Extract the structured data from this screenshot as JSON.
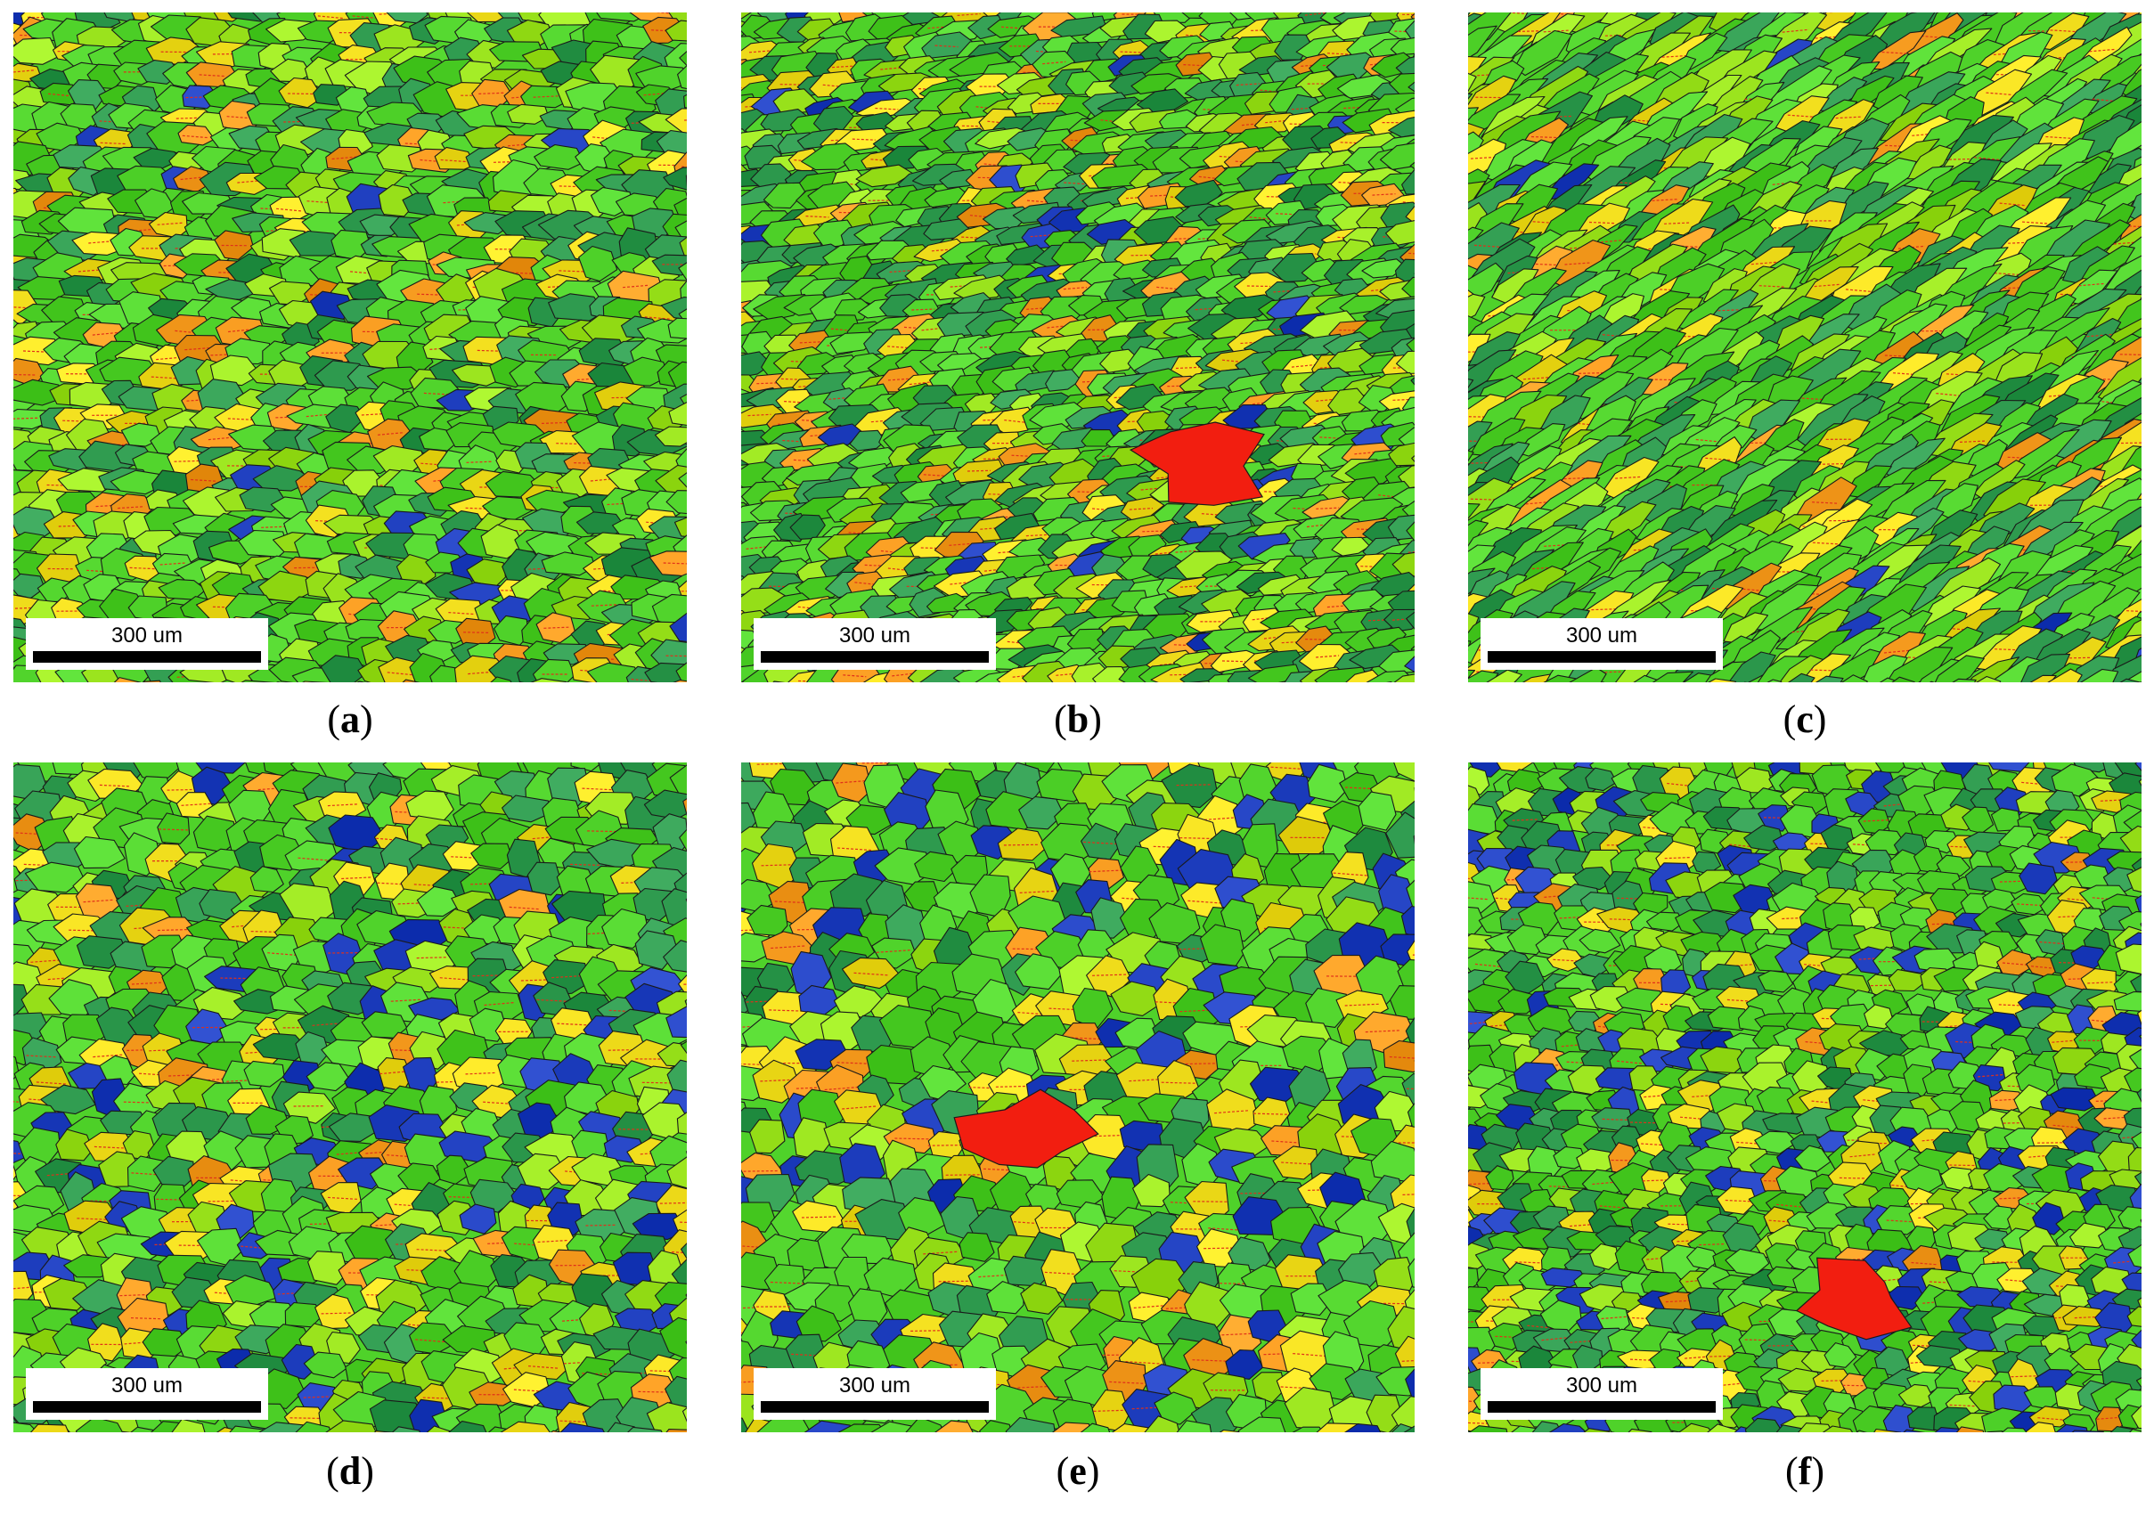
{
  "panels": [
    {
      "label": "a",
      "scale_text": "300 um",
      "seed": 11,
      "elong": 1.35,
      "angle": 0,
      "grain": 30,
      "weights": [
        0.42,
        0.22,
        0.18,
        0.1,
        0.06,
        0.02
      ],
      "red_blob": false
    },
    {
      "label": "b",
      "scale_text": "300 um",
      "seed": 23,
      "elong": 1.5,
      "angle": -12,
      "grain": 26,
      "weights": [
        0.4,
        0.25,
        0.16,
        0.1,
        0.06,
        0.03
      ],
      "red_blob": true
    },
    {
      "label": "c",
      "scale_text": "300 um",
      "seed": 37,
      "elong": 1.9,
      "angle": -35,
      "grain": 30,
      "weights": [
        0.46,
        0.22,
        0.16,
        0.1,
        0.05,
        0.01
      ],
      "red_blob": false
    },
    {
      "label": "d",
      "scale_text": "300 um",
      "seed": 41,
      "elong": 1.15,
      "angle": 0,
      "grain": 34,
      "weights": [
        0.4,
        0.2,
        0.16,
        0.1,
        0.04,
        0.1
      ],
      "red_blob": false
    },
    {
      "label": "e",
      "scale_text": "300 um",
      "seed": 53,
      "elong": 1.05,
      "angle": 0,
      "grain": 38,
      "weights": [
        0.4,
        0.18,
        0.14,
        0.12,
        0.06,
        0.1
      ],
      "red_blob": true
    },
    {
      "label": "f",
      "scale_text": "300 um",
      "seed": 67,
      "elong": 1.2,
      "angle": 0,
      "grain": 28,
      "weights": [
        0.4,
        0.2,
        0.18,
        0.08,
        0.03,
        0.11
      ],
      "red_blob": true
    }
  ],
  "palette": {
    "bright_green": "#4fd22a",
    "lime": "#9be41e",
    "teal_green": "#2e9a4e",
    "yellow": "#f2df1e",
    "orange": "#f59a1e",
    "blue": "#1f3fbf",
    "red": "#f21e10",
    "boundary": "#1a1a1a",
    "twin": "#e0301a"
  }
}
